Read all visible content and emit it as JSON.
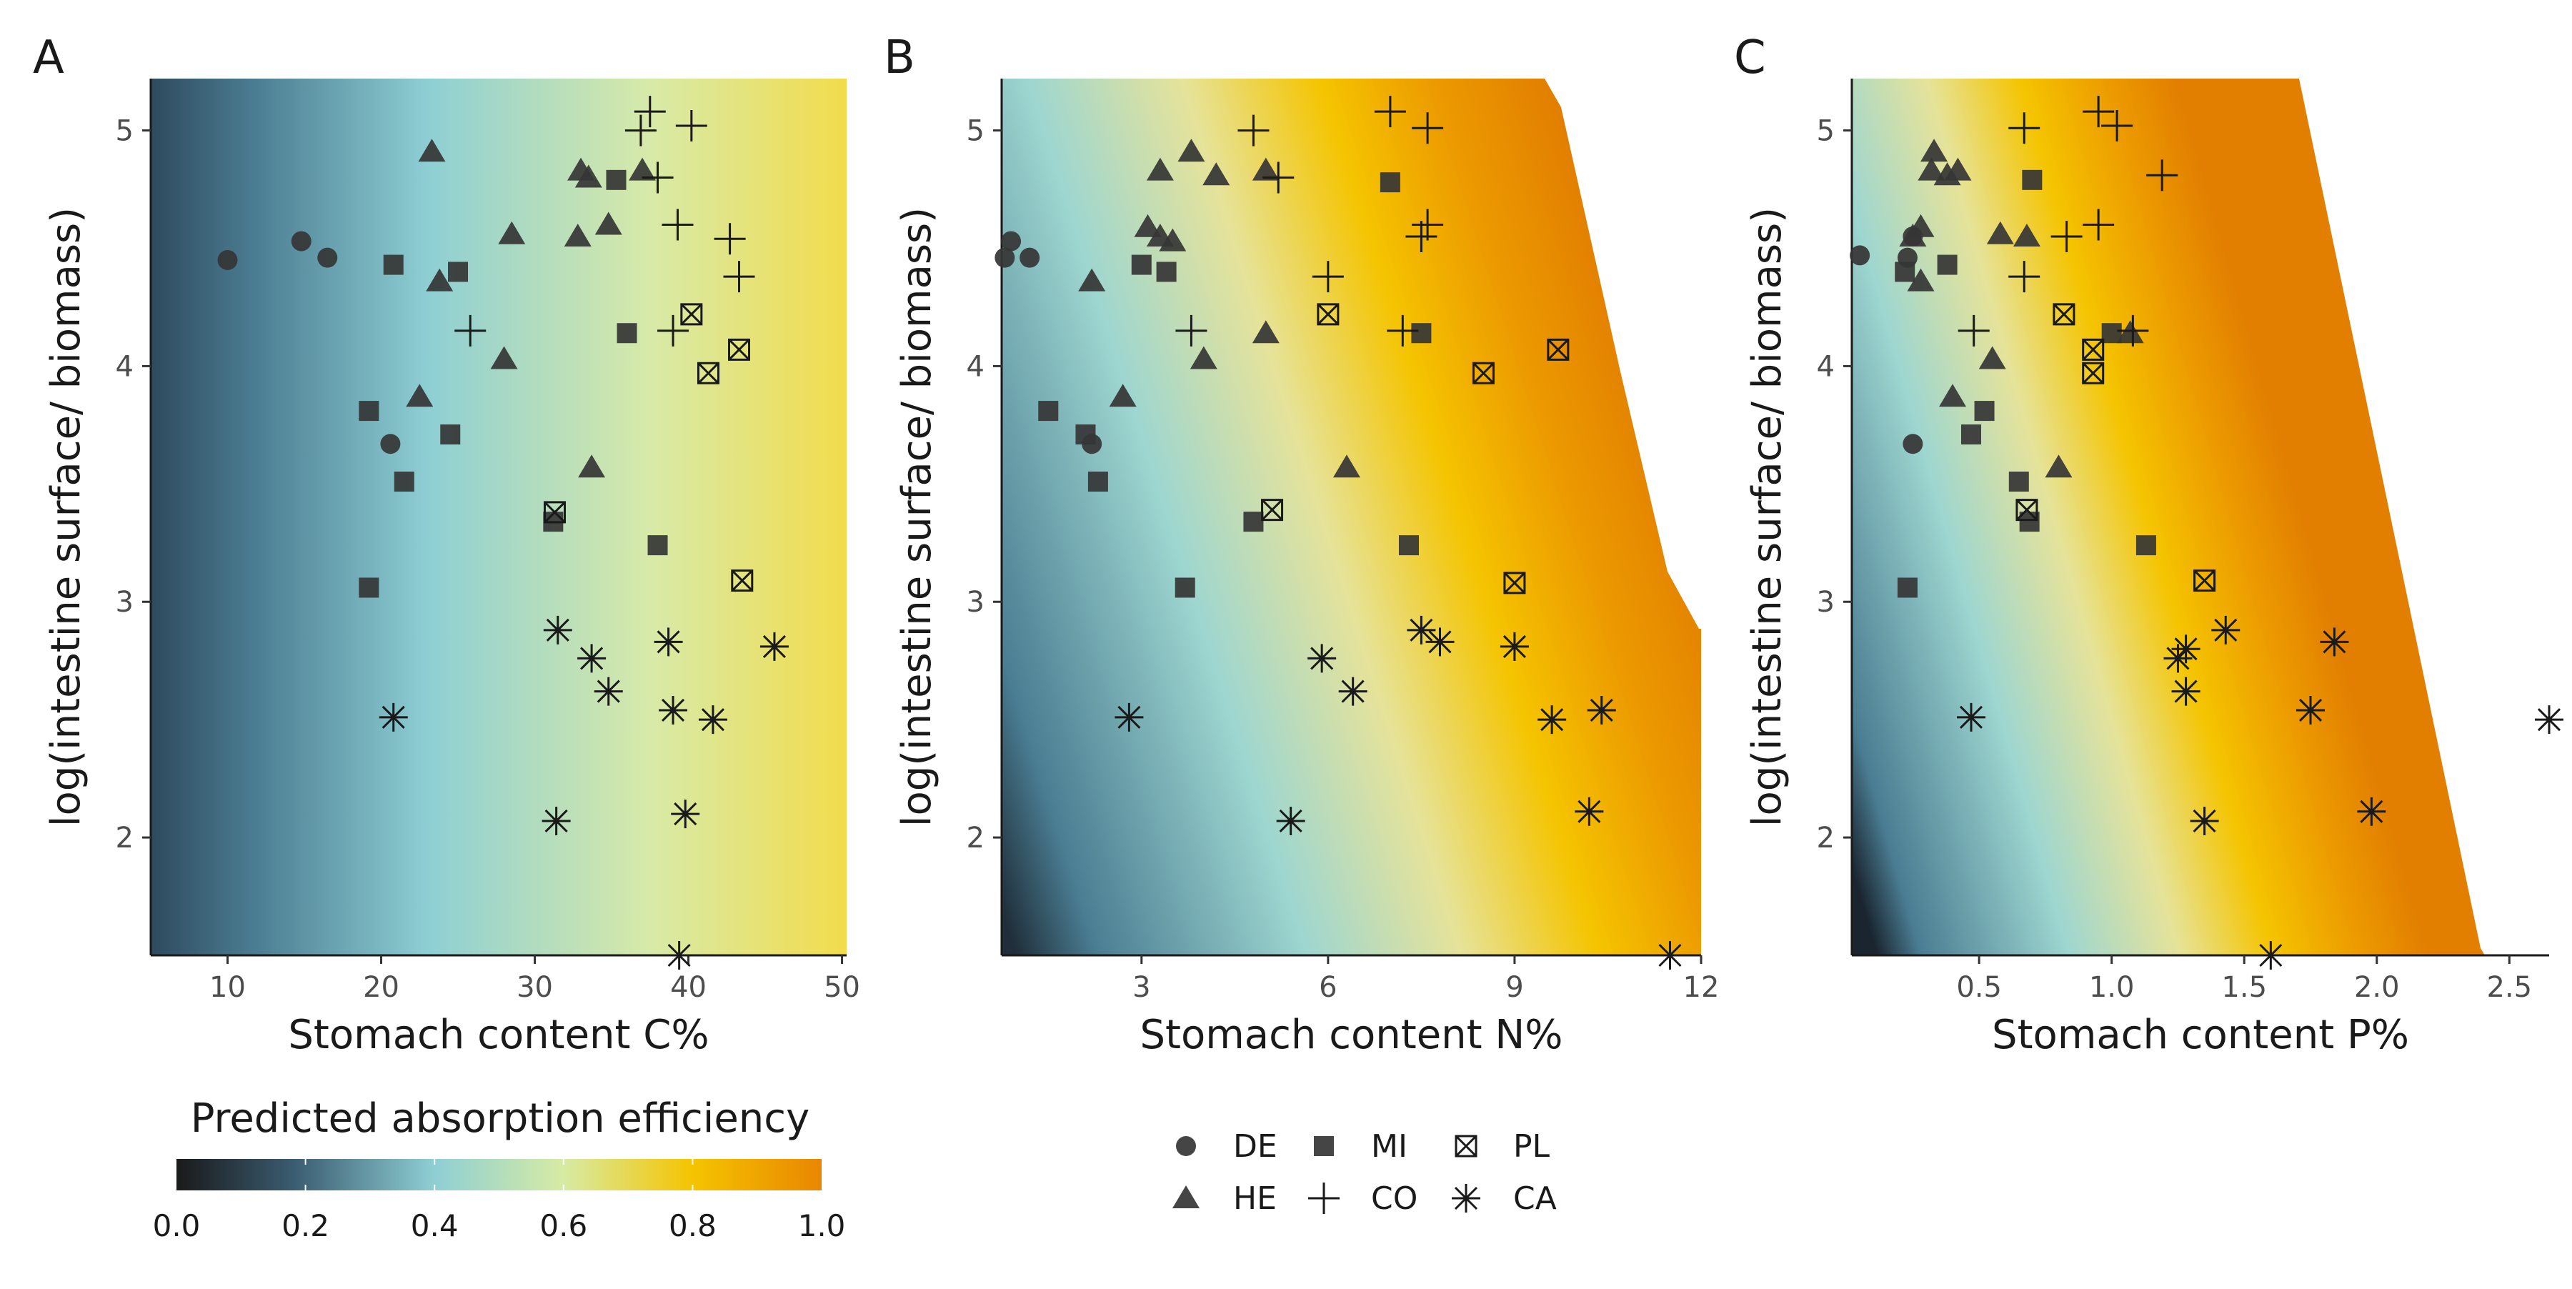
{
  "panels": [
    "A",
    "B",
    "C"
  ],
  "colorbar": {
    "title": "Predicted absorption efficiency",
    "ticks": [
      "0.0",
      "0.2",
      "0.4",
      "0.6",
      "0.8",
      "1.0"
    ],
    "stops": [
      "#1a1a1a",
      "#3a5b70",
      "#8ecfd4",
      "#d7eba4",
      "#f5c400",
      "#e98700"
    ]
  },
  "legend": {
    "items": [
      {
        "code": "DE",
        "shape": "circle"
      },
      {
        "code": "HE",
        "shape": "triangle"
      },
      {
        "code": "MI",
        "shape": "square"
      },
      {
        "code": "CO",
        "shape": "plus"
      },
      {
        "code": "PL",
        "shape": "boxed-x"
      },
      {
        "code": "CA",
        "shape": "asterisk"
      }
    ]
  },
  "chart_data": [
    {
      "panel": "A",
      "type": "scatter",
      "xlabel": "Stomach content C%",
      "ylabel": "log(intestine surface/ biomass)",
      "xlim": [
        5,
        50.3
      ],
      "ylim": [
        1.5,
        5.22
      ],
      "xticks": [
        10,
        20,
        30,
        40,
        50
      ],
      "yticks": [
        2,
        3,
        4,
        5
      ],
      "xtick_labels": [
        "10",
        "20",
        "30",
        "40",
        "50"
      ],
      "ytick_labels": [
        "2",
        "3",
        "4",
        "5"
      ],
      "background": "predicted absorption efficiency increasing with C% (≈0.05 at 5% to ≈0.75 at 50%)",
      "series": [
        {
          "name": "DE",
          "points": [
            [
              10.0,
              4.45
            ],
            [
              14.8,
              4.53
            ],
            [
              16.5,
              4.46
            ],
            [
              20.6,
              3.67
            ]
          ]
        },
        {
          "name": "HE",
          "points": [
            [
              23.3,
              4.91
            ],
            [
              23.8,
              4.36
            ],
            [
              22.5,
              3.87
            ],
            [
              28.5,
              4.56
            ],
            [
              28.0,
              4.03
            ],
            [
              33.0,
              4.83
            ],
            [
              33.5,
              4.8
            ],
            [
              32.8,
              4.55
            ],
            [
              34.8,
              4.6
            ],
            [
              37.0,
              4.83
            ],
            [
              33.7,
              3.57
            ]
          ]
        },
        {
          "name": "MI",
          "points": [
            [
              20.8,
              4.43
            ],
            [
              25.0,
              4.4
            ],
            [
              19.2,
              3.81
            ],
            [
              24.5,
              3.71
            ],
            [
              21.5,
              3.51
            ],
            [
              19.2,
              3.06
            ],
            [
              31.2,
              3.34
            ],
            [
              35.3,
              4.79
            ],
            [
              36.0,
              4.14
            ],
            [
              38.0,
              3.24
            ]
          ]
        },
        {
          "name": "CO",
          "points": [
            [
              25.8,
              4.15
            ],
            [
              37.5,
              5.08
            ],
            [
              36.9,
              5.0
            ],
            [
              40.2,
              5.02
            ],
            [
              38.0,
              4.8
            ],
            [
              39.3,
              4.6
            ],
            [
              42.7,
              4.54
            ],
            [
              43.3,
              4.38
            ],
            [
              39.0,
              4.15
            ]
          ]
        },
        {
          "name": "PL",
          "points": [
            [
              40.2,
              4.22
            ],
            [
              43.3,
              4.07
            ],
            [
              41.3,
              3.97
            ],
            [
              31.3,
              3.38
            ],
            [
              43.5,
              3.09
            ]
          ]
        },
        {
          "name": "CA",
          "points": [
            [
              20.8,
              2.51
            ],
            [
              31.5,
              2.88
            ],
            [
              33.7,
              2.76
            ],
            [
              34.8,
              2.62
            ],
            [
              38.7,
              2.83
            ],
            [
              39.0,
              2.54
            ],
            [
              41.6,
              2.5
            ],
            [
              45.6,
              2.81
            ],
            [
              31.4,
              2.07
            ],
            [
              39.8,
              2.1
            ],
            [
              39.4,
              1.5
            ]
          ]
        }
      ]
    },
    {
      "panel": "B",
      "type": "scatter",
      "xlabel": "Stomach content N%",
      "ylabel": "log(intestine surface/ biomass)",
      "xlim": [
        0.75,
        12.0
      ],
      "ylim": [
        1.5,
        5.22
      ],
      "xticks": [
        3,
        6,
        9,
        12
      ],
      "yticks": [
        2,
        3,
        4,
        5
      ],
      "xtick_labels": [
        "3",
        "6",
        "9",
        "12"
      ],
      "ytick_labels": [
        "2",
        "3",
        "4",
        "5"
      ],
      "background": "predicted absorption efficiency increasing with N% and with log(intestine surface/ biomass); blank where outside prediction range",
      "series": [
        {
          "name": "DE",
          "points": [
            [
              0.9,
              4.53
            ],
            [
              0.8,
              4.46
            ],
            [
              1.2,
              4.46
            ],
            [
              2.2,
              3.67
            ]
          ]
        },
        {
          "name": "HE",
          "points": [
            [
              3.8,
              4.91
            ],
            [
              3.3,
              4.83
            ],
            [
              4.2,
              4.81
            ],
            [
              5.0,
              4.83
            ],
            [
              3.1,
              4.59
            ],
            [
              3.3,
              4.55
            ],
            [
              3.5,
              4.53
            ],
            [
              2.2,
              4.36
            ],
            [
              5.0,
              4.14
            ],
            [
              4.0,
              4.03
            ],
            [
              2.7,
              3.87
            ],
            [
              6.3,
              3.57
            ]
          ]
        },
        {
          "name": "MI",
          "points": [
            [
              3.0,
              4.43
            ],
            [
              3.4,
              4.4
            ],
            [
              1.5,
              3.81
            ],
            [
              2.1,
              3.71
            ],
            [
              2.3,
              3.51
            ],
            [
              3.7,
              3.06
            ],
            [
              4.8,
              3.34
            ],
            [
              7.0,
              4.78
            ],
            [
              7.5,
              4.14
            ],
            [
              7.3,
              3.24
            ]
          ]
        },
        {
          "name": "CO",
          "points": [
            [
              4.8,
              5.0
            ],
            [
              7.0,
              5.08
            ],
            [
              7.6,
              5.01
            ],
            [
              5.2,
              4.8
            ],
            [
              6.0,
              4.38
            ],
            [
              7.6,
              4.6
            ],
            [
              7.5,
              4.55
            ],
            [
              7.2,
              4.15
            ],
            [
              3.8,
              4.15
            ]
          ]
        },
        {
          "name": "PL",
          "points": [
            [
              6.0,
              4.22
            ],
            [
              9.7,
              4.07
            ],
            [
              8.5,
              3.97
            ],
            [
              5.1,
              3.39
            ],
            [
              9.0,
              3.08
            ]
          ]
        },
        {
          "name": "CA",
          "points": [
            [
              2.8,
              2.51
            ],
            [
              5.9,
              2.76
            ],
            [
              6.4,
              2.62
            ],
            [
              7.5,
              2.88
            ],
            [
              7.8,
              2.83
            ],
            [
              9.0,
              2.81
            ],
            [
              9.6,
              2.5
            ],
            [
              10.4,
              2.54
            ],
            [
              5.4,
              2.07
            ],
            [
              10.2,
              2.11
            ],
            [
              11.5,
              1.5
            ]
          ]
        }
      ]
    },
    {
      "panel": "C",
      "type": "scatter",
      "xlabel": "Stomach content P%",
      "ylabel": "log(intestine surface/ biomass)",
      "xlim": [
        0.02,
        2.65
      ],
      "ylim": [
        1.5,
        5.22
      ],
      "xticks": [
        0.5,
        1.0,
        1.5,
        2.0,
        2.5
      ],
      "yticks": [
        2,
        3,
        4,
        5
      ],
      "xtick_labels": [
        "0.5",
        "1.0",
        "1.5",
        "2.0",
        "2.5"
      ],
      "ytick_labels": [
        "2",
        "3",
        "4",
        "5"
      ],
      "background": "predicted absorption efficiency increasing with P%; blank where outside prediction range",
      "series": [
        {
          "name": "DE",
          "points": [
            [
              0.05,
              4.47
            ],
            [
              0.25,
              4.55
            ],
            [
              0.23,
              4.46
            ],
            [
              0.25,
              3.67
            ]
          ]
        },
        {
          "name": "HE",
          "points": [
            [
              0.33,
              4.91
            ],
            [
              0.32,
              4.83
            ],
            [
              0.42,
              4.83
            ],
            [
              0.38,
              4.81
            ],
            [
              0.28,
              4.59
            ],
            [
              0.25,
              4.55
            ],
            [
              0.58,
              4.56
            ],
            [
              0.68,
              4.55
            ],
            [
              0.28,
              4.36
            ],
            [
              0.55,
              4.03
            ],
            [
              1.07,
              4.14
            ],
            [
              0.4,
              3.87
            ],
            [
              0.8,
              3.57
            ]
          ]
        },
        {
          "name": "MI",
          "points": [
            [
              0.7,
              4.79
            ],
            [
              0.22,
              4.4
            ],
            [
              0.38,
              4.43
            ],
            [
              0.52,
              3.81
            ],
            [
              0.47,
              3.71
            ],
            [
              0.65,
              3.51
            ],
            [
              0.69,
              3.34
            ],
            [
              1.0,
              4.14
            ],
            [
              1.13,
              3.24
            ],
            [
              0.23,
              3.06
            ]
          ]
        },
        {
          "name": "CO",
          "points": [
            [
              0.67,
              5.01
            ],
            [
              0.95,
              5.08
            ],
            [
              1.02,
              5.02
            ],
            [
              1.19,
              4.81
            ],
            [
              0.83,
              4.55
            ],
            [
              0.95,
              4.6
            ],
            [
              0.67,
              4.38
            ],
            [
              0.48,
              4.15
            ],
            [
              1.08,
              4.15
            ]
          ]
        },
        {
          "name": "PL",
          "points": [
            [
              0.82,
              4.22
            ],
            [
              0.93,
              4.07
            ],
            [
              0.93,
              3.97
            ],
            [
              0.68,
              3.39
            ],
            [
              1.35,
              3.09
            ]
          ]
        },
        {
          "name": "CA",
          "points": [
            [
              0.47,
              2.51
            ],
            [
              1.25,
              2.76
            ],
            [
              1.28,
              2.8
            ],
            [
              1.28,
              2.62
            ],
            [
              1.43,
              2.88
            ],
            [
              1.84,
              2.83
            ],
            [
              1.75,
              2.54
            ],
            [
              1.35,
              2.07
            ],
            [
              1.98,
              2.11
            ],
            [
              1.6,
              1.5
            ],
            [
              2.65,
              2.5
            ]
          ]
        }
      ]
    }
  ]
}
